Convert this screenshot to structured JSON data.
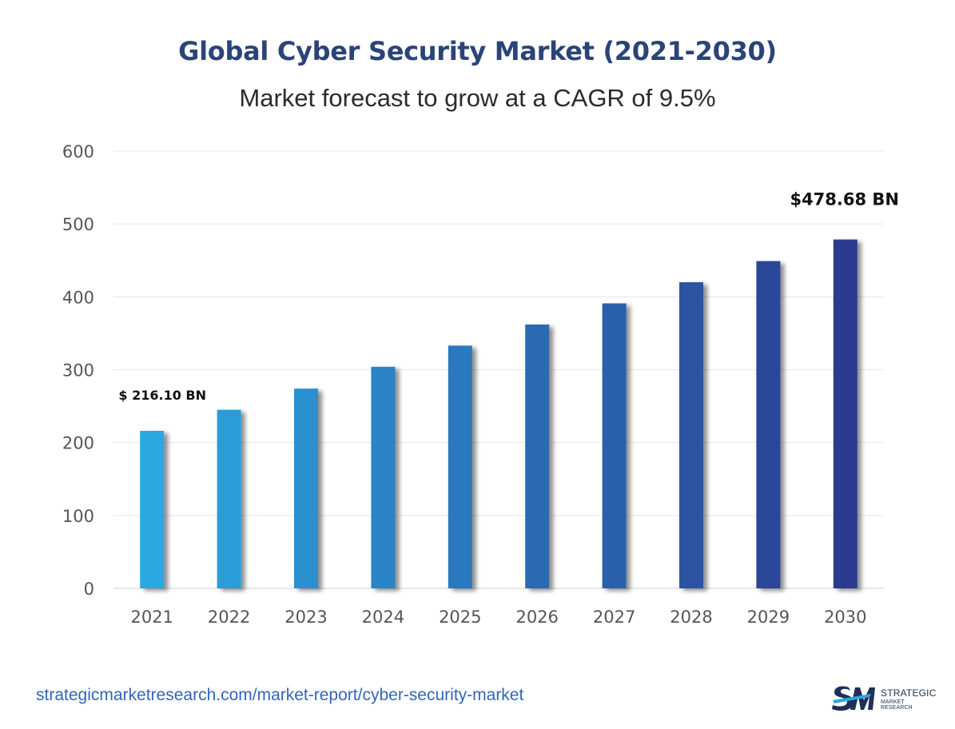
{
  "header": {
    "title": "Global Cyber Security Market (2021-2030)",
    "subtitle": "Market forecast to grow at a CAGR of 9.5%"
  },
  "footer": {
    "url": "strategicmarketresearch.com/market-report/cyber-security-market",
    "logo_text_line1": "STRATEGIC",
    "logo_text_line2": "MARKET RESEARCH"
  },
  "colors": {
    "title": "#2b4478",
    "bar_start": "#29a9e1",
    "bar_end": "#2a3a8f",
    "gridline": "#e6e6e6",
    "url": "#3266b7"
  },
  "chart_data": {
    "type": "bar",
    "title": "Global Cyber Security Market (2021-2030)",
    "subtitle": "Market forecast to grow at a CAGR of 9.5%",
    "xlabel": "",
    "ylabel": "",
    "categories": [
      "2021",
      "2022",
      "2023",
      "2024",
      "2025",
      "2026",
      "2027",
      "2028",
      "2029",
      "2030"
    ],
    "values": [
      216.1,
      245,
      274,
      304,
      333,
      362,
      391,
      420,
      449,
      478.68
    ],
    "ylim": [
      0,
      600
    ],
    "yticks": [
      0,
      100,
      200,
      300,
      400,
      500,
      600
    ],
    "grid": true,
    "legend": "none",
    "annotations": [
      {
        "category": "2021",
        "text": "$ 216.10 BN"
      },
      {
        "category": "2030",
        "text": "$478.68 BN"
      }
    ]
  }
}
